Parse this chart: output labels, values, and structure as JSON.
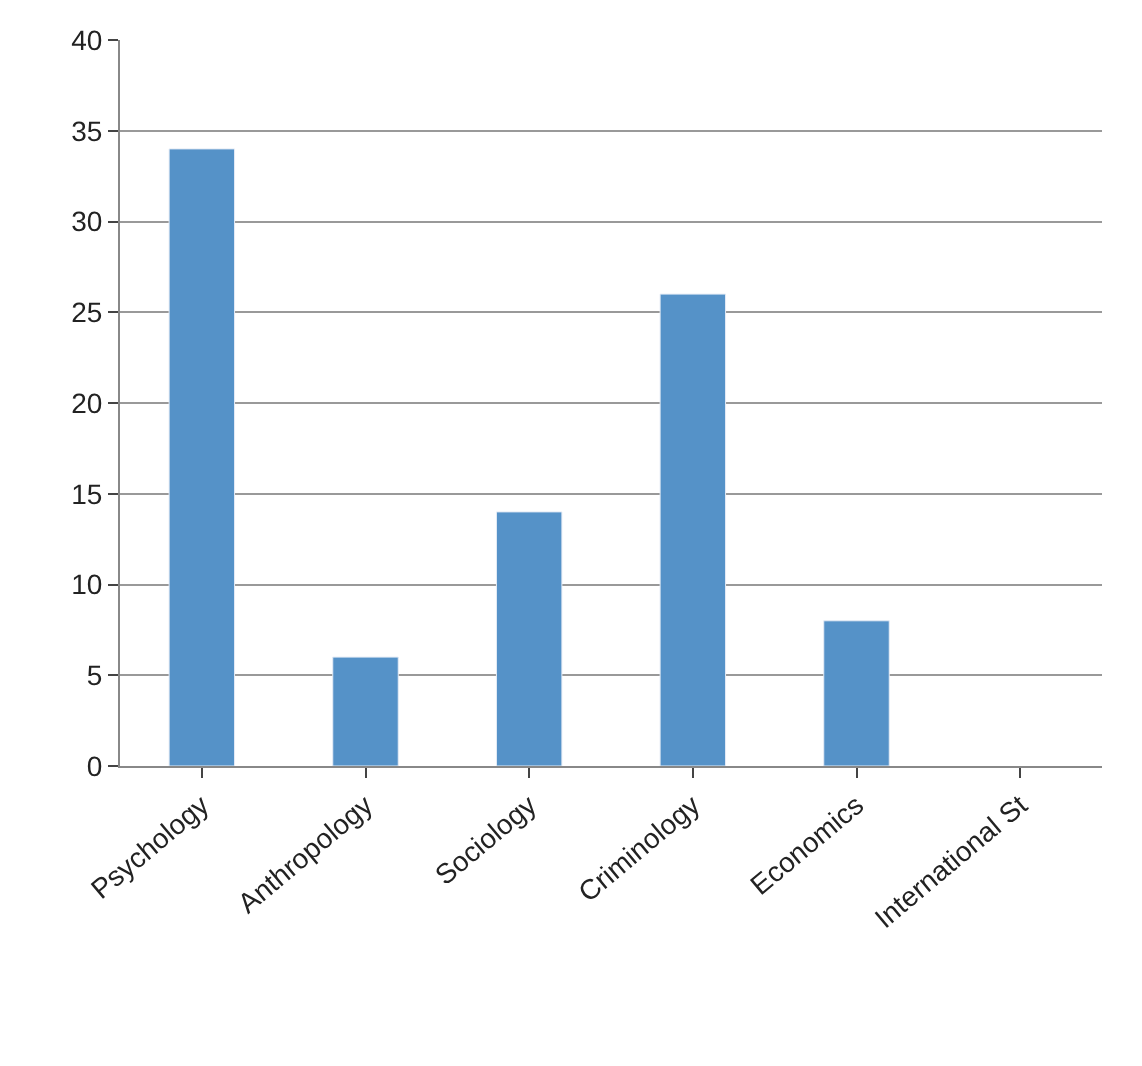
{
  "chart_data": {
    "type": "bar",
    "categories": [
      "Psychology",
      "Anthropology",
      "Sociology",
      "Criminology",
      "Economics",
      "International St"
    ],
    "values": [
      34,
      6,
      14,
      26,
      8,
      null
    ],
    "color": "#5592c8",
    "ylim": [
      0,
      40
    ],
    "yticks": [
      0,
      5,
      10,
      15,
      20,
      25,
      30,
      35,
      40
    ],
    "grid": "y"
  }
}
